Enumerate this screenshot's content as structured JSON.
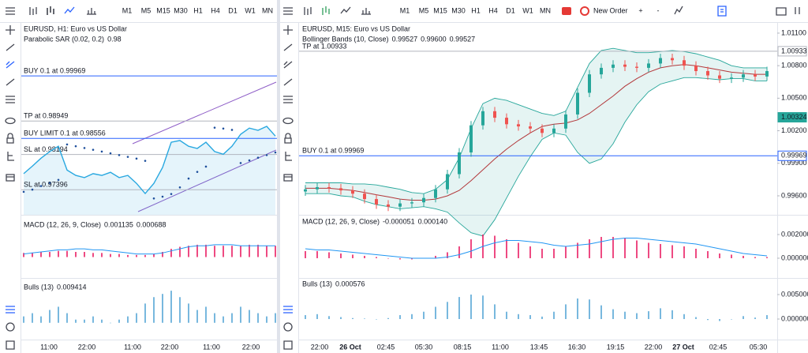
{
  "left": {
    "toolbar": {
      "timeframes": [
        "M1",
        "M5",
        "M15",
        "M30",
        "H1",
        "H4",
        "D1",
        "W1",
        "MN"
      ],
      "active": "H1"
    },
    "title": "EURUSD, H1: Euro vs US Dollar",
    "indicator": {
      "name": "Parabolic SAR (0.02, 0.2)",
      "value": "0.98"
    },
    "main": {
      "type": "line",
      "ylim": [
        0.9683,
        1.0115
      ],
      "line_color": "#29a8e0",
      "sar_color": "#1e4f9c",
      "price": [
        0.9776,
        0.9793,
        0.9811,
        0.9826,
        0.9838,
        0.9784,
        0.9772,
        0.9767,
        0.9776,
        0.9772,
        0.9779,
        0.9767,
        0.9772,
        0.9754,
        0.9731,
        0.9754,
        0.979,
        0.9847,
        0.9851,
        0.9838,
        0.9833,
        0.9847,
        0.9826,
        0.982,
        0.9838,
        0.9865,
        0.9879,
        0.9874,
        0.9883,
        0.9861
      ],
      "sar": [
        0.9735,
        0.974,
        0.9748,
        0.9755,
        0.9762,
        0.9842,
        0.9838,
        0.9834,
        0.983,
        0.9826,
        0.9822,
        0.9818,
        0.9814,
        0.981,
        0.9805,
        0.972,
        0.9724,
        0.973,
        0.9745,
        0.9765,
        0.978,
        0.9792,
        0.988,
        0.9878,
        0.9875,
        0.98,
        0.9806,
        0.9812,
        0.9818,
        0.9824
      ]
    },
    "orders": [
      {
        "label": "BUY 0.1 at 0.99969",
        "price": 0.99969,
        "color": "#2962ff"
      },
      {
        "label": "TP at 0.98949",
        "price": 0.98949,
        "color": "#b2b5be"
      },
      {
        "label": "BUY LIMIT 0.1 at 0.98556",
        "price": 0.98556,
        "color": "#2962ff"
      },
      {
        "label": "SL at 0.98194",
        "price": 0.98194,
        "color": "#b2b5be"
      },
      {
        "label": "SL at 0.97396",
        "price": 0.97396,
        "color": "#b2b5be"
      }
    ],
    "macd": {
      "label": "MACD (12, 26, 9, Close)",
      "values_text": [
        "0.001135",
        "0.000688"
      ],
      "ylim": [
        -0.0015,
        0.0035
      ],
      "histogram_color": "#e91e63",
      "signal_color": "#2196f3",
      "histogram": [
        0.0004,
        0.0004,
        0.0005,
        0.0005,
        0.0006,
        0.0006,
        0.0005,
        0.0005,
        0.0004,
        0.0004,
        0.0003,
        0.0003,
        0.0002,
        0.0002,
        0.0002,
        0.0003,
        0.0005,
        0.0008,
        0.001,
        0.0011,
        0.0012,
        0.0012,
        0.0011,
        0.0011,
        0.0011,
        0.0011,
        0.0012,
        0.0012,
        0.0011,
        0.0011
      ],
      "signal": [
        0.0003,
        0.0004,
        0.0005,
        0.0006,
        0.0007,
        0.0007,
        0.0008,
        0.0008,
        0.0007,
        0.0007,
        0.0006,
        0.0005,
        0.0004,
        0.0003,
        0.0003,
        0.0003,
        0.0004,
        0.0006,
        0.0008,
        0.001,
        0.0011,
        0.0011,
        0.0012,
        0.0012,
        0.0012,
        0.0011,
        0.0011,
        0.0011,
        0.0011,
        0.0011
      ]
    },
    "bulls": {
      "label": "Bulls (13)",
      "value_text": "0.009414",
      "ylim": [
        -0.004,
        0.012
      ],
      "color": "#1e88c8",
      "values": [
        0.002,
        0.003,
        0.002,
        0.004,
        0.005,
        0.003,
        0.001,
        0.001,
        0.002,
        0.001,
        0.0,
        0.001,
        0.002,
        0.003,
        0.006,
        0.008,
        0.009,
        0.01,
        0.008,
        0.006,
        0.004,
        0.005,
        0.003,
        0.002,
        0.003,
        0.005,
        0.004,
        0.003,
        0.002,
        0.003
      ]
    },
    "time_labels": [
      "11:00",
      "22:00",
      "11:00",
      "22:00",
      "11:00",
      "22:00"
    ]
  },
  "right": {
    "toolbar": {
      "timeframes": [
        "M1",
        "M5",
        "M15",
        "M30",
        "H1",
        "H4",
        "D1",
        "W1",
        "MN"
      ],
      "active": "M15",
      "new_order": "New Order",
      "zoom_in": "+",
      "zoom_out": "-"
    },
    "title": "EURUSD, M15: Euro vs US Dollar",
    "indicator": {
      "name": "Bollinger Bands (10, Close)",
      "values_text": [
        "0.99527",
        "0.99600",
        "0.99527"
      ],
      "value_colors": [
        "#e91e63",
        "#2e9e5b",
        "#2962ff"
      ]
    },
    "main": {
      "type": "candlestick",
      "ylim": [
        0.99425,
        1.01187
      ],
      "up_color": "#26a69a",
      "down_color": "#ef5350",
      "yticks": [
        {
          "value": 1.011,
          "label": "1.01100"
        },
        {
          "value": 1.008,
          "label": "1.00800"
        },
        {
          "value": 1.005,
          "label": "1.00500"
        },
        {
          "value": 1.002,
          "label": "1.00200"
        },
        {
          "value": 0.999,
          "label": "0.99900"
        },
        {
          "value": 0.996,
          "label": "0.99600"
        }
      ],
      "open": [
        0.9964,
        0.9966,
        0.9968,
        0.9967,
        0.9965,
        0.9962,
        0.9957,
        0.9952,
        0.995,
        0.9953,
        0.9954,
        0.9958,
        0.9966,
        0.998,
        1.0,
        1.0025,
        1.0038,
        1.0032,
        1.0026,
        1.0024,
        1.0022,
        1.0018,
        1.0022,
        1.0035,
        1.0055,
        1.0072,
        1.0078,
        1.0081,
        1.0079,
        1.0078,
        1.0082,
        1.0087,
        1.0085,
        1.008,
        1.0075,
        1.0071,
        1.0068,
        1.0069,
        1.0072,
        1.007
      ],
      "high": [
        0.997,
        0.9972,
        0.9972,
        0.9971,
        0.9969,
        0.9966,
        0.9961,
        0.9956,
        0.9957,
        0.9958,
        0.9962,
        0.997,
        0.9984,
        1.0004,
        1.0029,
        1.0042,
        1.0042,
        1.0036,
        1.003,
        1.0028,
        1.0026,
        1.0026,
        1.0039,
        1.0059,
        1.0076,
        1.0082,
        1.0085,
        1.0085,
        1.0083,
        1.0086,
        1.0091,
        1.0091,
        1.0089,
        1.0084,
        1.0079,
        1.0075,
        1.0073,
        1.0076,
        1.0076,
        1.0079
      ],
      "low": [
        0.996,
        0.9962,
        0.9963,
        0.9961,
        0.9958,
        0.9953,
        0.9948,
        0.9946,
        0.9946,
        0.9949,
        0.995,
        0.9954,
        0.9962,
        0.9976,
        0.9996,
        1.0021,
        1.0028,
        1.0022,
        1.002,
        1.0018,
        1.0014,
        1.0014,
        1.0018,
        1.0031,
        1.0051,
        1.0068,
        1.0074,
        1.0075,
        1.0074,
        1.0074,
        1.0078,
        1.0081,
        1.0076,
        1.0071,
        1.0067,
        1.0064,
        1.0064,
        1.0065,
        1.0066,
        1.0066
      ],
      "close": [
        0.9966,
        0.9968,
        0.9967,
        0.9965,
        0.9962,
        0.9957,
        0.9952,
        0.995,
        0.9953,
        0.9954,
        0.9958,
        0.9966,
        0.998,
        1.0,
        1.0025,
        1.0038,
        1.0032,
        1.0026,
        1.0024,
        1.0022,
        1.0018,
        1.0022,
        1.0035,
        1.0055,
        1.0072,
        1.0078,
        1.0081,
        1.0079,
        1.0078,
        1.0082,
        1.0087,
        1.0085,
        1.008,
        1.0075,
        1.0071,
        1.0068,
        1.0069,
        1.0072,
        1.007,
        1.0075
      ],
      "bands": {
        "middle_color": "#b2373a",
        "band_color": "#26a69a",
        "middle": [
          0.9967,
          0.9967,
          0.9967,
          0.9966,
          0.9965,
          0.9963,
          0.9961,
          0.9959,
          0.9957,
          0.9956,
          0.9956,
          0.9957,
          0.996,
          0.9965,
          0.9974,
          0.9984,
          0.9994,
          1.0003,
          1.0011,
          1.0018,
          1.0024,
          1.0026,
          1.0027,
          1.003,
          1.0036,
          1.0044,
          1.0052,
          1.0061,
          1.0068,
          1.0074,
          1.0078,
          1.008,
          1.0081,
          1.008,
          1.0078,
          1.0076,
          1.0074,
          1.0073,
          1.0072,
          1.0072
        ],
        "upper": [
          0.9972,
          0.9972,
          0.9972,
          0.9972,
          0.9971,
          0.9971,
          0.997,
          0.9968,
          0.9966,
          0.9963,
          0.9962,
          0.9966,
          0.9975,
          0.9995,
          1.0022,
          1.0045,
          1.005,
          1.0048,
          1.0044,
          1.004,
          1.0036,
          1.0034,
          1.0038,
          1.006,
          1.0082,
          1.0094,
          1.0096,
          1.0094,
          1.0092,
          1.0092,
          1.0093,
          1.0094,
          1.0093,
          1.0091,
          1.0088,
          1.0085,
          1.008,
          1.0078,
          1.0078,
          1.0078
        ],
        "lower": [
          0.9962,
          0.9962,
          0.9962,
          0.996,
          0.9959,
          0.9955,
          0.9952,
          0.995,
          0.9948,
          0.9949,
          0.995,
          0.9948,
          0.9945,
          0.9935,
          0.9926,
          0.9923,
          0.9938,
          0.9958,
          0.9978,
          0.9996,
          1.0012,
          1.0018,
          1.0016,
          1.0,
          0.999,
          0.9994,
          1.0008,
          1.0028,
          1.0044,
          1.0056,
          1.0063,
          1.0066,
          1.0069,
          1.0069,
          1.0068,
          1.0067,
          1.0068,
          1.0068,
          1.0066,
          1.0066
        ]
      }
    },
    "orders": [
      {
        "label": "TP at 1.00933",
        "price": 1.00933,
        "color": "#b2b5be"
      },
      {
        "label": "BUY 0.1 at 0.99969",
        "price": 0.99969,
        "color": "#2962ff"
      }
    ],
    "price_tags": [
      {
        "value": 1.00933,
        "label": "1.00933",
        "color": "#b2b5be",
        "filled": false
      },
      {
        "value": 1.00324,
        "label": "1.00324",
        "color": "#26a69a",
        "filled": true
      },
      {
        "value": 0.99969,
        "label": "0.99969",
        "color": "#2962ff",
        "filled": false
      }
    ],
    "macd": {
      "label": "MACD (12, 26, 9, Close)",
      "values_text": [
        "-0.000051",
        "0.000140"
      ],
      "ylim": [
        -0.00167,
        0.0034
      ],
      "yticks": [
        {
          "value": 0.002,
          "label": "0.002000"
        },
        {
          "value": 0,
          "label": "0.000000"
        }
      ],
      "histogram_color": "#e91e63",
      "signal_color": "#2196f3",
      "histogram": [
        0.0006,
        0.0006,
        0.0005,
        0.0004,
        0.0003,
        0.0002,
        0.0001,
        0.0,
        -0.0001,
        -0.0001,
        0.0,
        0.0002,
        0.0005,
        0.001,
        0.0016,
        0.002,
        0.0019,
        0.0016,
        0.0013,
        0.001,
        0.0008,
        0.0008,
        0.001,
        0.0013,
        0.0016,
        0.0018,
        0.0018,
        0.0017,
        0.0015,
        0.0013,
        0.0012,
        0.0011,
        0.001,
        0.0008,
        0.0006,
        0.0004,
        0.0003,
        0.0002,
        0.0001,
        0.0001
      ],
      "signal": [
        0.0008,
        0.0007,
        0.0007,
        0.0006,
        0.0005,
        0.0004,
        0.0003,
        0.0002,
        0.0001,
        0.0,
        0.0,
        0.0,
        0.0001,
        0.0003,
        0.0006,
        0.001,
        0.0013,
        0.0015,
        0.0015,
        0.0014,
        0.0013,
        0.0011,
        0.001,
        0.0011,
        0.0012,
        0.0014,
        0.0016,
        0.0017,
        0.0017,
        0.0016,
        0.0015,
        0.0014,
        0.0013,
        0.0012,
        0.001,
        0.0008,
        0.0006,
        0.0004,
        0.0003,
        0.0002
      ]
    },
    "bulls": {
      "label": "Bulls (13)",
      "value_text": "0.000576",
      "ylim": [
        -0.00419,
        0.00774
      ],
      "color": "#1e88c8",
      "yticks": [
        {
          "value": 0.005,
          "label": "0.005000"
        },
        {
          "value": 0,
          "label": "0.000000"
        }
      ],
      "values": [
        0.0008,
        0.001,
        0.0006,
        0.0004,
        0.0002,
        0.0001,
        0.0,
        0.0002,
        0.0008,
        0.001,
        0.0015,
        0.0025,
        0.0035,
        0.0045,
        0.005,
        0.0048,
        0.003,
        0.0015,
        0.001,
        0.0008,
        0.0005,
        0.0015,
        0.003,
        0.0042,
        0.004,
        0.0028,
        0.002,
        0.0015,
        0.0012,
        0.0016,
        0.0022,
        0.0018,
        0.001,
        0.0004,
        -0.0002,
        -0.0004,
        0.0,
        0.0006,
        0.0003,
        0.0008
      ]
    },
    "time_labels": [
      "22:00",
      "26 Oct",
      "02:45",
      "05:30",
      "08:15",
      "11:00",
      "13:45",
      "16:30",
      "19:15",
      "22:00",
      "27 Oct",
      "02:45",
      "05:30"
    ]
  }
}
